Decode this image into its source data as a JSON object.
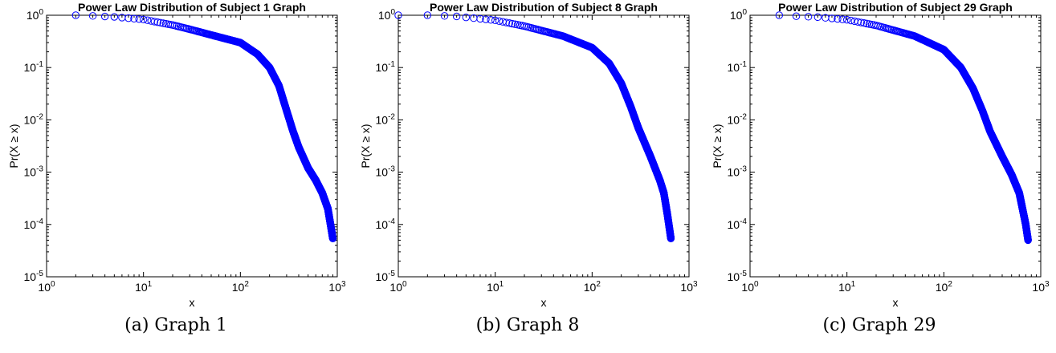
{
  "chart_data": [
    {
      "type": "scatter",
      "title": "Power Law Distribution of Subject 1 Graph",
      "xlabel": "x",
      "ylabel": "Pr(X ≥ x)",
      "xscale": "log",
      "yscale": "log",
      "xlim": [
        1,
        1000
      ],
      "ylim": [
        1e-05,
        1
      ],
      "xticks": [
        "10^0",
        "10^1",
        "10^2",
        "10^3"
      ],
      "yticks": [
        "10^0",
        "10^-1",
        "10^-2",
        "10^-3",
        "10^-4",
        "10^-5"
      ],
      "marker": "open-circle",
      "color": "#0000ff",
      "grid": false,
      "caption": "(a) Graph 1",
      "ccdf": {
        "x_min": 2,
        "x_max": 900,
        "y_tail": 5.4e-05
      },
      "points": [
        [
          2,
          1.0
        ],
        [
          3,
          0.97
        ],
        [
          5,
          0.93
        ],
        [
          10,
          0.83
        ],
        [
          20,
          0.65
        ],
        [
          30,
          0.54
        ],
        [
          50,
          0.42
        ],
        [
          100,
          0.3
        ],
        [
          150,
          0.18
        ],
        [
          200,
          0.1
        ],
        [
          250,
          0.045
        ],
        [
          300,
          0.015
        ],
        [
          350,
          0.006
        ],
        [
          400,
          0.003
        ],
        [
          500,
          0.0012
        ],
        [
          600,
          0.0007
        ],
        [
          700,
          0.0004
        ],
        [
          800,
          0.0002
        ],
        [
          900,
          5.4e-05
        ]
      ]
    },
    {
      "type": "scatter",
      "title": "Power Law Distribution of Subject 8 Graph",
      "xlabel": "x",
      "ylabel": "Pr(X ≥ x)",
      "xscale": "log",
      "yscale": "log",
      "xlim": [
        1,
        1000
      ],
      "ylim": [
        1e-05,
        1
      ],
      "xticks": [
        "10^0",
        "10^1",
        "10^2",
        "10^3"
      ],
      "yticks": [
        "10^0",
        "10^-1",
        "10^-2",
        "10^-3",
        "10^-4",
        "10^-5"
      ],
      "marker": "open-circle",
      "color": "#0000ff",
      "grid": false,
      "caption": "(b) Graph 8",
      "ccdf": {
        "x_min": 1,
        "x_max": 650,
        "y_tail": 5.4e-05
      },
      "points": [
        [
          1,
          1.0
        ],
        [
          2,
          1.0
        ],
        [
          4,
          0.95
        ],
        [
          10,
          0.8
        ],
        [
          20,
          0.62
        ],
        [
          50,
          0.4
        ],
        [
          100,
          0.24
        ],
        [
          150,
          0.12
        ],
        [
          200,
          0.05
        ],
        [
          250,
          0.018
        ],
        [
          300,
          0.007
        ],
        [
          400,
          0.002
        ],
        [
          500,
          0.0007
        ],
        [
          550,
          0.0004
        ],
        [
          600,
          0.00015
        ],
        [
          650,
          5.4e-05
        ]
      ]
    },
    {
      "type": "scatter",
      "title": "Power Law Distribution of Subject 29 Graph",
      "xlabel": "x",
      "ylabel": "Pr(X ≥ x)",
      "xscale": "log",
      "yscale": "log",
      "xlim": [
        1,
        1000
      ],
      "ylim": [
        1e-05,
        1
      ],
      "xticks": [
        "10^0",
        "10^1",
        "10^2",
        "10^3"
      ],
      "yticks": [
        "10^0",
        "10^-1",
        "10^-2",
        "10^-3",
        "10^-4",
        "10^-5"
      ],
      "marker": "open-circle",
      "color": "#0000ff",
      "grid": false,
      "caption": "(c) Graph 29",
      "ccdf": {
        "x_min": 2,
        "x_max": 740,
        "y_tail": 5e-05
      },
      "points": [
        [
          2,
          1.0
        ],
        [
          3,
          0.96
        ],
        [
          5,
          0.92
        ],
        [
          10,
          0.82
        ],
        [
          20,
          0.64
        ],
        [
          50,
          0.4
        ],
        [
          100,
          0.22
        ],
        [
          150,
          0.1
        ],
        [
          200,
          0.04
        ],
        [
          250,
          0.015
        ],
        [
          300,
          0.006
        ],
        [
          400,
          0.002
        ],
        [
          500,
          0.0009
        ],
        [
          600,
          0.0004
        ],
        [
          700,
          0.0001
        ],
        [
          740,
          5e-05
        ]
      ]
    }
  ]
}
